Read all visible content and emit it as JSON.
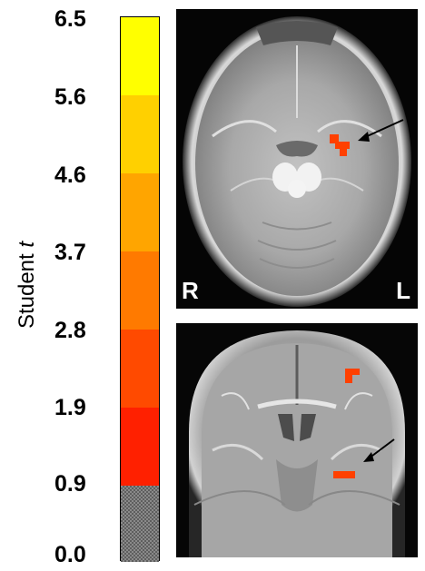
{
  "colorbar": {
    "title": "Student",
    "title_italic": "t",
    "ticks": [
      "6.5",
      "5.6",
      "4.6",
      "3.7",
      "2.8",
      "1.9",
      "0.9",
      "0.0"
    ],
    "colors": [
      "#ffff00",
      "#ffd000",
      "#ffa500",
      "#ff7a00",
      "#ff4a00",
      "#ff2000",
      "#ff0000"
    ],
    "below_threshold_color": "#8a8a8a"
  },
  "axial_panel": {
    "left_label": "R",
    "right_label": "L",
    "highlight_color": "#ff4000"
  },
  "coronal_panel": {
    "highlight_color": "#ff4000"
  }
}
